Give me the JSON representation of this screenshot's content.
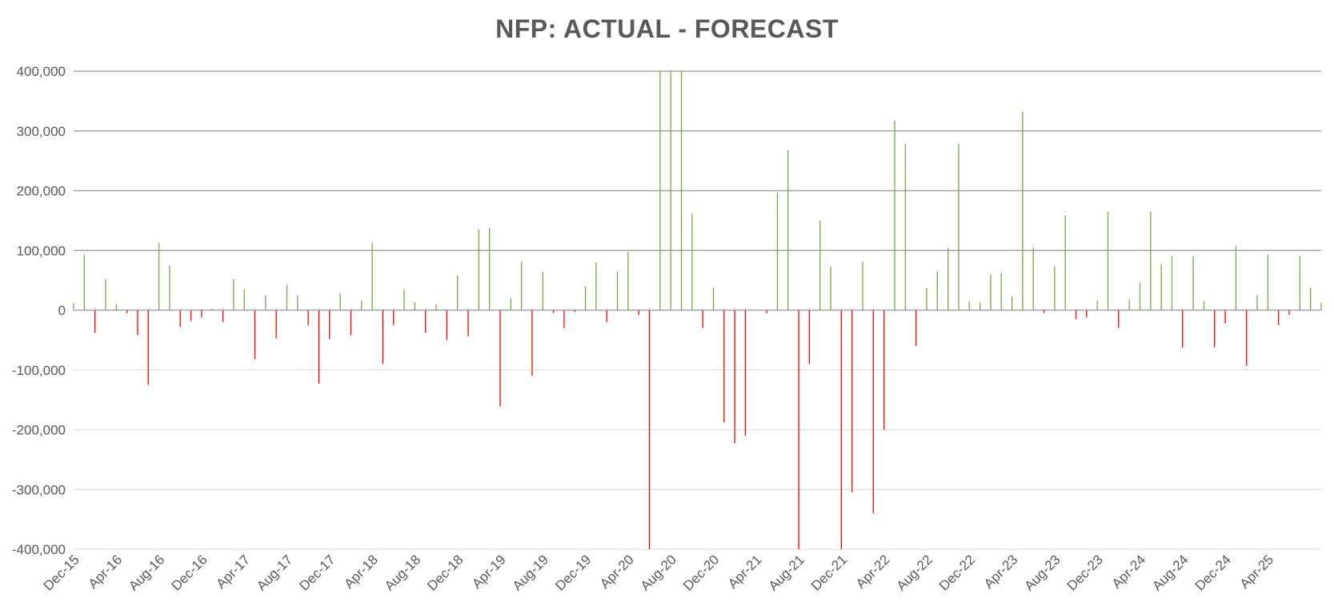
{
  "chart_data": {
    "type": "bar",
    "title": "NFP: ACTUAL - FORECAST",
    "xlabel": "",
    "ylabel": "",
    "ylim": [
      -400000,
      400000
    ],
    "yticks": [
      400000,
      300000,
      200000,
      100000,
      0,
      -100000,
      -200000,
      -300000,
      -400000
    ],
    "ytick_labels": [
      "400,000",
      "300,000",
      "200,000",
      "100,000",
      "0",
      "-100,000",
      "-200,000",
      "-300,000",
      "-400,000"
    ],
    "x_start": "2015-12",
    "xtick_labels": [
      "Dec-15",
      "Apr-16",
      "Aug-16",
      "Dec-16",
      "Apr-17",
      "Aug-17",
      "Dec-17",
      "Apr-18",
      "Aug-18",
      "Dec-18",
      "Apr-19",
      "Aug-19",
      "Dec-19",
      "Apr-20",
      "Aug-20",
      "Dec-20",
      "Apr-21",
      "Aug-21",
      "Dec-21",
      "Apr-22",
      "Aug-22",
      "Dec-22",
      "Apr-23",
      "Aug-23",
      "Dec-23",
      "Apr-24",
      "Aug-24",
      "Dec-24",
      "Apr-25"
    ],
    "grid": true,
    "colors": {
      "positive": "#70ad47",
      "negative": "#ff0000",
      "grid": "#bfbfbf",
      "text": "#595959"
    },
    "series": [
      {
        "values": [
          12000,
          93000,
          -38000,
          52000,
          10000,
          -5000,
          -42000,
          -125000,
          113000,
          75000,
          -28000,
          -18000,
          -12000,
          3000,
          -20000,
          52000,
          35000,
          -82000,
          25000,
          -47000,
          43000,
          25000,
          -25000,
          -123000,
          -48000,
          29000,
          -42000,
          16000,
          113000,
          -90000,
          -25000,
          35000,
          13000,
          -38000,
          10000,
          -50000,
          58000,
          -44000,
          135000,
          138000,
          -161000,
          20000,
          81000,
          -110000,
          64000,
          -5000,
          -30000,
          -3000,
          40000,
          80000,
          -20000,
          65000,
          98000,
          -8000,
          -400000,
          400000,
          400000,
          400000,
          162000,
          -30000,
          38000,
          -188000,
          -223000,
          -210000,
          0,
          -5000,
          197000,
          268000,
          -400000,
          -90000,
          150000,
          73000,
          -400000,
          -305000,
          81000,
          -340000,
          -200000,
          317000,
          278000,
          -60000,
          37000,
          65000,
          104000,
          278000,
          15000,
          13000,
          60000,
          62000,
          23000,
          332000,
          105000,
          -5000,
          74000,
          159000,
          -15000,
          -12000,
          16000,
          165000,
          -30000,
          18000,
          46000,
          165000,
          77000,
          91000,
          -63000,
          90000,
          15000,
          -62000,
          -22000,
          107000,
          -93000,
          25000,
          93000,
          -25000,
          -8000,
          91000,
          38000,
          12000
        ]
      }
    ]
  }
}
